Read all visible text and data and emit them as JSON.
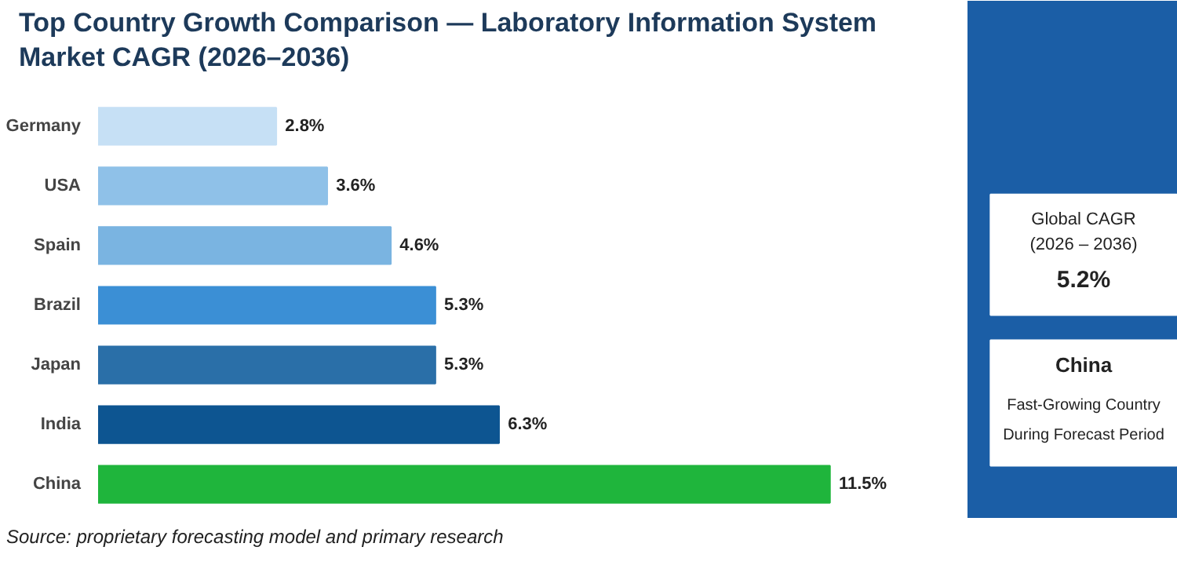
{
  "chart_data": {
    "type": "bar",
    "orientation": "horizontal",
    "title": "Top Country Growth Comparison — Laboratory Information System Market CAGR (2026–2036)",
    "categories": [
      "Germany",
      "USA",
      "Spain",
      "Brazil",
      "Japan",
      "India",
      "China"
    ],
    "values": [
      2.8,
      3.6,
      4.6,
      5.3,
      5.3,
      6.3,
      11.5
    ],
    "value_labels": [
      "2.8%",
      "3.6%",
      "4.6%",
      "5.3%",
      "5.3%",
      "6.3%",
      "11.5%"
    ],
    "colors": [
      "#c6e0f5",
      "#8fc1e8",
      "#7ab4e1",
      "#3b8fd5",
      "#2a6fa8",
      "#0d5591",
      "#1fb53c"
    ],
    "grid": false,
    "annotations": [
      "Source: proprietary forecasting model and primary research",
      "Global CAGR",
      "(2026 – 2036)",
      "5.2%",
      "China",
      "Fast-Growing Country",
      "During Forecast Period"
    ]
  }
}
